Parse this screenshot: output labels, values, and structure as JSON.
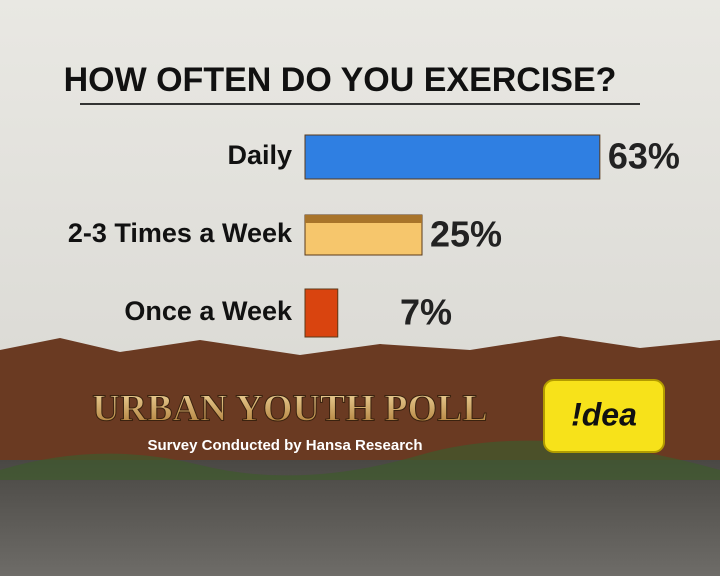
{
  "chart_data": {
    "type": "bar",
    "orientation": "horizontal",
    "title": "HOW OFTEN DO YOU EXERCISE?",
    "categories": [
      "Daily",
      "2-3 Times a Week",
      "Once  a Week"
    ],
    "values": [
      63,
      25,
      7
    ],
    "value_labels": [
      "63%",
      "25%",
      "7%"
    ],
    "colors": [
      "#2f7fe2",
      "#f6c66c",
      "#d9440f"
    ],
    "footer_title": "URBAN YOUTH POLL",
    "footer_subtitle": "Survey Conducted by Hansa Research",
    "sponsor": "!dea"
  }
}
